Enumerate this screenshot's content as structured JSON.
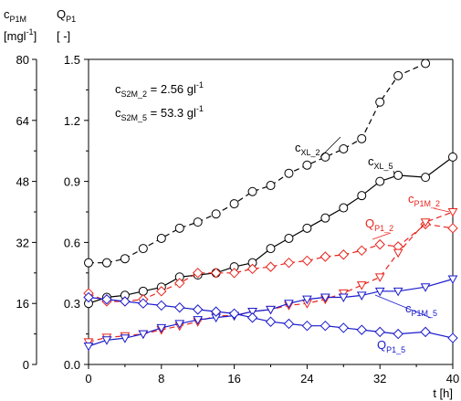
{
  "chart_data": {
    "type": "line",
    "x_axis": {
      "label": "t [h]",
      "range": [
        0,
        40
      ],
      "ticks": [
        0,
        8,
        16,
        24,
        32,
        40
      ]
    },
    "y_axes": [
      {
        "id": "left",
        "label_lines": [
          {
            "base": "c",
            "sub": "P1M"
          },
          {
            "base": "[mgl",
            "sup": "-1",
            "tail": "]"
          }
        ],
        "range": [
          0,
          80
        ],
        "ticks": [
          0,
          16,
          32,
          48,
          64,
          80
        ]
      },
      {
        "id": "right",
        "label_lines": [
          {
            "base": "Q",
            "sub": "P1"
          },
          {
            "base": "[ -]"
          }
        ],
        "range": [
          0,
          1.5
        ],
        "ticks": [
          "0.0",
          "0.3",
          "0.6",
          "0.9",
          "1.2",
          "1.5"
        ]
      }
    ],
    "grid": false,
    "conditions": [
      {
        "base": "c",
        "sub": "S2M_2",
        "value": " = 2.56 gl",
        "sup": "-1"
      },
      {
        "base": "c",
        "sub": "S2M_5",
        "value": " = 53.3 gl",
        "sup": "-1"
      }
    ],
    "series": [
      {
        "label_base": "c",
        "label_sub": "XL_2",
        "axis": "right",
        "color": "#000000",
        "dash": "6,4",
        "marker": "circle",
        "x": [
          0,
          2,
          4,
          6,
          8,
          10,
          12,
          14,
          16,
          18,
          20,
          22,
          24,
          26,
          28,
          30,
          32,
          34,
          37
        ],
        "y": [
          0.5,
          0.5,
          0.52,
          0.57,
          0.62,
          0.67,
          0.7,
          0.74,
          0.79,
          0.85,
          0.88,
          0.94,
          0.98,
          1.02,
          1.06,
          1.11,
          1.29,
          1.42,
          1.48
        ]
      },
      {
        "label_base": "c",
        "label_sub": "XL_5",
        "axis": "right",
        "color": "#000000",
        "dash": "",
        "marker": "circle",
        "x": [
          0,
          2,
          4,
          6,
          8,
          10,
          12,
          14,
          16,
          18,
          20,
          22,
          24,
          26,
          28,
          30,
          32,
          34,
          37,
          40
        ],
        "y": [
          0.3,
          0.33,
          0.34,
          0.36,
          0.38,
          0.43,
          0.44,
          0.45,
          0.48,
          0.5,
          0.57,
          0.62,
          0.67,
          0.72,
          0.77,
          0.83,
          0.9,
          0.93,
          0.92,
          1.02
        ]
      },
      {
        "label_base": "Q",
        "label_sub": "P1_2",
        "axis": "right",
        "color": "#e8241c",
        "dash": "6,4",
        "marker": "diamond",
        "x": [
          0,
          2,
          4,
          6,
          8,
          10,
          12,
          14,
          16,
          18,
          20,
          22,
          24,
          26,
          28,
          30,
          32,
          34,
          37,
          40
        ],
        "y": [
          0.35,
          0.31,
          0.31,
          0.32,
          0.36,
          0.4,
          0.45,
          0.45,
          0.45,
          0.47,
          0.48,
          0.5,
          0.51,
          0.53,
          0.54,
          0.56,
          0.59,
          0.58,
          0.69,
          0.67
        ]
      },
      {
        "label_base": "c",
        "label_sub": "P1M_2",
        "axis": "left",
        "color": "#e8241c",
        "dash": "6,4",
        "marker": "triangle-down",
        "x": [
          0,
          2,
          4,
          6,
          8,
          10,
          12,
          14,
          16,
          18,
          20,
          22,
          24,
          26,
          28,
          30,
          32,
          34,
          37,
          40
        ],
        "y": [
          5.9,
          7.1,
          7.5,
          8.0,
          9.1,
          10.1,
          11.2,
          12.8,
          12.8,
          13.9,
          14.4,
          15.5,
          16.0,
          17.1,
          18.7,
          20.8,
          22.9,
          29.3,
          37.3,
          40.0
        ]
      },
      {
        "label_base": "c",
        "label_sub": "P1M_5",
        "axis": "left",
        "color": "#1a1acc",
        "dash": "",
        "marker": "triangle-down",
        "x": [
          0,
          2,
          4,
          6,
          8,
          10,
          12,
          14,
          16,
          18,
          20,
          22,
          24,
          26,
          28,
          30,
          32,
          34,
          37,
          40
        ],
        "y": [
          4.8,
          6.4,
          6.9,
          8.0,
          9.6,
          10.7,
          11.7,
          12.3,
          12.8,
          13.9,
          14.4,
          16.0,
          17.1,
          17.6,
          17.6,
          18.1,
          19.2,
          19.2,
          20.3,
          22.4
        ]
      },
      {
        "label_base": "Q",
        "label_sub": "P1_5",
        "axis": "right",
        "color": "#1a1acc",
        "dash": "",
        "marker": "diamond",
        "x": [
          0,
          2,
          4,
          6,
          8,
          10,
          12,
          14,
          16,
          18,
          20,
          22,
          24,
          26,
          28,
          30,
          32,
          34,
          37,
          40
        ],
        "y": [
          0.33,
          0.32,
          0.31,
          0.3,
          0.29,
          0.28,
          0.27,
          0.26,
          0.25,
          0.23,
          0.21,
          0.2,
          0.19,
          0.19,
          0.18,
          0.17,
          0.16,
          0.15,
          0.16,
          0.13
        ]
      }
    ]
  }
}
